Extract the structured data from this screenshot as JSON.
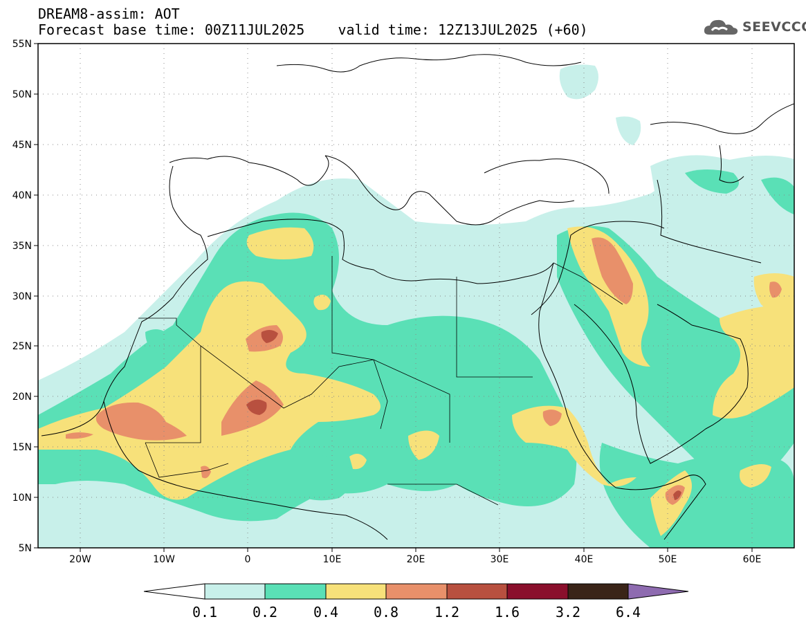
{
  "header": {
    "model_line": "DREAM8-assim: AOT",
    "base_time": "Forecast base time: 00Z11JUL2025",
    "valid_time": "valid time: 12Z13JUL2025 (+60)"
  },
  "logo": {
    "text": "SEEVCCC",
    "icon": "cloud-icon"
  },
  "map": {
    "lat_labels": [
      "55N",
      "50N",
      "45N",
      "40N",
      "35N",
      "30N",
      "25N",
      "20N",
      "15N",
      "10N",
      "5N"
    ],
    "lon_labels": [
      "20W",
      "10W",
      "0",
      "10E",
      "20E",
      "30E",
      "40E",
      "50E",
      "60E"
    ],
    "lon_range": [
      -25,
      65
    ],
    "lat_range": [
      5,
      55
    ]
  },
  "colorbar": {
    "labels": [
      "0.1",
      "0.2",
      "0.4",
      "0.8",
      "1.2",
      "1.6",
      "3.2",
      "6.4"
    ],
    "colors": [
      "#ffffff",
      "#c8f0ea",
      "#5ae0b6",
      "#f7e17a",
      "#e8906a",
      "#b8503f",
      "#8a0f2c",
      "#3a2418",
      "#8e6bb0"
    ]
  },
  "palette": {
    "very_light": "#c8f0ea",
    "light": "#5ae0b6",
    "yellow": "#f7e17a",
    "orange": "#e8906a",
    "red": "#b8503f"
  }
}
